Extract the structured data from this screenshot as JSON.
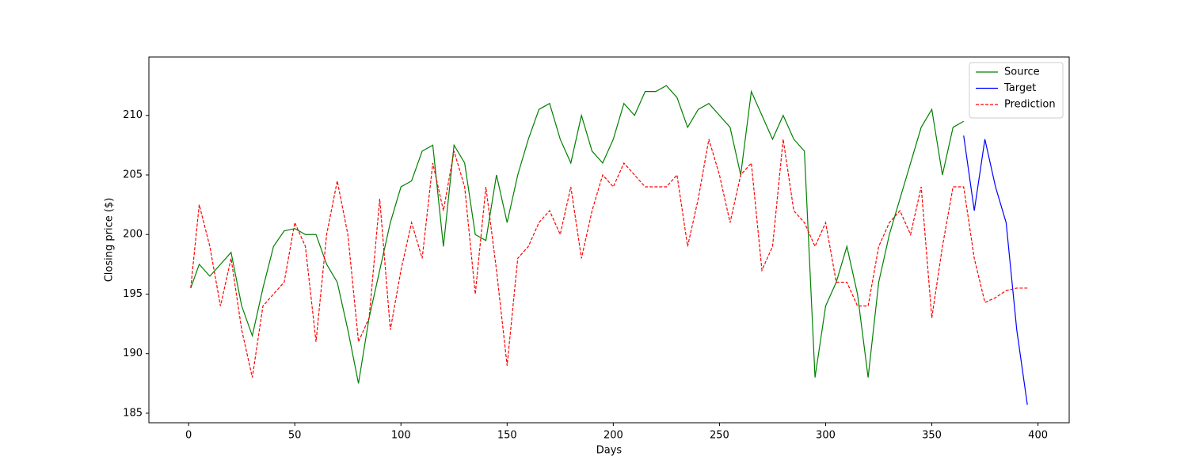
{
  "chart_data": {
    "type": "line",
    "xlabel": "Days",
    "ylabel": "Closing price ($)",
    "x": [
      1,
      5,
      10,
      15,
      20,
      25,
      30,
      35,
      40,
      45,
      50,
      55,
      60,
      65,
      70,
      75,
      80,
      85,
      90,
      95,
      100,
      105,
      110,
      115,
      120,
      125,
      130,
      135,
      140,
      145,
      150,
      155,
      160,
      165,
      170,
      175,
      180,
      185,
      190,
      195,
      200,
      205,
      210,
      215,
      220,
      225,
      230,
      235,
      240,
      245,
      250,
      255,
      260,
      265,
      270,
      275,
      280,
      285,
      290,
      295,
      300,
      305,
      310,
      315,
      320,
      325,
      330,
      335,
      340,
      345,
      350,
      355,
      360,
      365,
      370,
      375,
      380,
      385,
      390,
      395
    ],
    "series": [
      {
        "name": "Source",
        "color": "#008000",
        "linestyle": "solid",
        "values": [
          195.5,
          197.5,
          196.5,
          197.5,
          198.5,
          194,
          191.5,
          195.5,
          199,
          200.3,
          200.5,
          200,
          200,
          197.5,
          196,
          192,
          187.5,
          193,
          197,
          201,
          204,
          204.5,
          207,
          207.5,
          199,
          207.5,
          206,
          200,
          199.5,
          205,
          201,
          205,
          208,
          210.5,
          211,
          208,
          206,
          210,
          207,
          206,
          208,
          211,
          210,
          212,
          212,
          212.5,
          211.5,
          209,
          210.5,
          211,
          210,
          209,
          205,
          212,
          210,
          208,
          210,
          208,
          207,
          188,
          194,
          196,
          199,
          195,
          188,
          196,
          200,
          203,
          206,
          209,
          210.5,
          205,
          209,
          209.5,
          null,
          null,
          null,
          null,
          null,
          null
        ]
      },
      {
        "name": "Target",
        "color": "#0000ff",
        "linestyle": "solid",
        "values": [
          null,
          null,
          null,
          null,
          null,
          null,
          null,
          null,
          null,
          null,
          null,
          null,
          null,
          null,
          null,
          null,
          null,
          null,
          null,
          null,
          null,
          null,
          null,
          null,
          null,
          null,
          null,
          null,
          null,
          null,
          null,
          null,
          null,
          null,
          null,
          null,
          null,
          null,
          null,
          null,
          null,
          null,
          null,
          null,
          null,
          null,
          null,
          null,
          null,
          null,
          null,
          null,
          null,
          null,
          null,
          null,
          null,
          null,
          null,
          null,
          null,
          null,
          null,
          null,
          null,
          null,
          null,
          null,
          null,
          null,
          null,
          null,
          null,
          208.3,
          202,
          208,
          204,
          201,
          192,
          185.7
        ]
      },
      {
        "name": "Prediction",
        "color": "#ff0000",
        "linestyle": "dashed",
        "values": [
          195.5,
          202.5,
          199,
          194,
          198,
          192,
          188,
          194,
          195,
          196,
          201,
          199,
          191,
          200,
          204.5,
          200,
          191,
          193,
          203,
          192,
          197,
          201,
          198,
          206,
          202,
          207,
          204,
          195,
          204,
          197,
          189,
          198,
          199,
          201,
          202,
          200,
          204,
          198,
          202,
          205,
          204,
          206,
          205,
          204,
          204,
          204,
          205,
          199,
          203,
          208,
          205,
          201,
          205,
          206,
          197,
          199,
          208,
          202,
          201,
          199,
          201,
          196,
          196,
          194,
          194,
          199,
          201,
          202,
          200,
          204,
          193,
          199,
          204,
          204,
          198,
          194.3,
          194.7,
          195.3,
          195.5,
          195.5
        ]
      }
    ],
    "xlim": [
      -18.7,
      414.7
    ],
    "xticks": [
      0,
      50,
      100,
      150,
      200,
      250,
      300,
      350,
      400
    ],
    "ylim": [
      184.2,
      214.9
    ],
    "yticks": [
      185,
      190,
      195,
      200,
      205,
      210
    ],
    "grid": false,
    "legend": "upper right"
  }
}
